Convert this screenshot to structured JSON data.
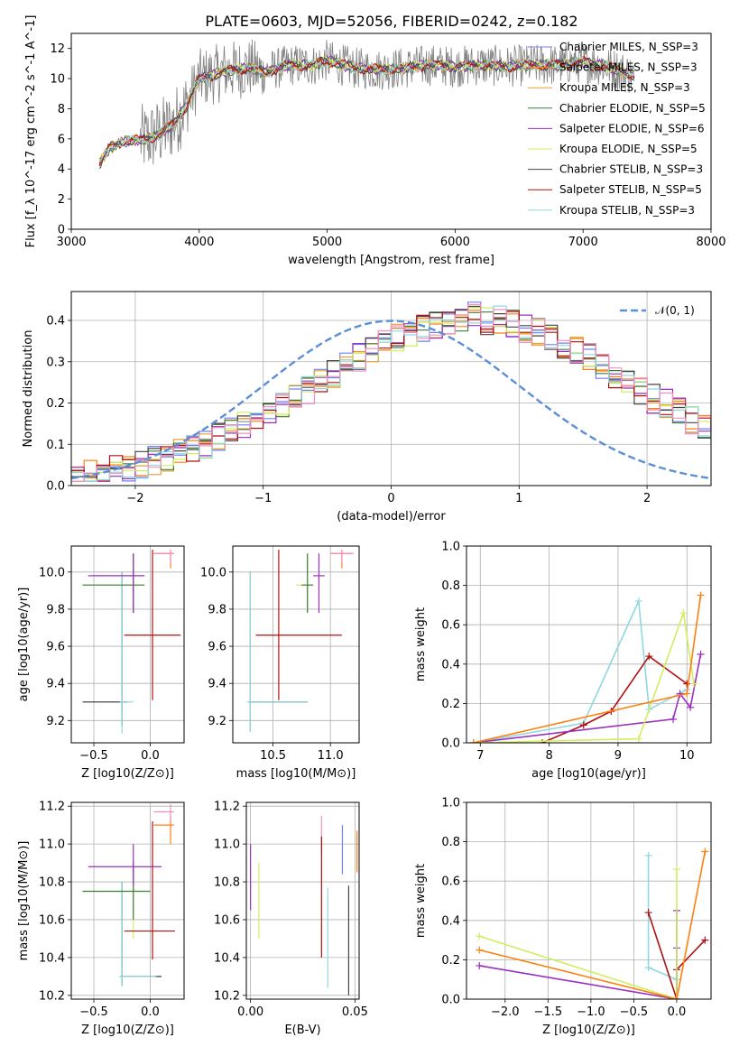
{
  "title": "PLATE=0603, MJD=52056, FIBERID=0242, z=0.182",
  "colors": {
    "cm": "#6f7fff",
    "sm": "#ff7f0e",
    "km": "#e6a035",
    "ce": "#3f7f3f",
    "se": "#9b2fbf",
    "ke": "#cfef5f",
    "cs": "#444444",
    "ss": "#b01010",
    "ks": "#8fd8e0",
    "data": "#808080",
    "gauss": "#5b8fd6",
    "pink": "#f090c0"
  },
  "chart_data": [
    {
      "type": "line",
      "title": "PLATE=0603, MJD=52056, FIBERID=0242, z=0.182",
      "xlabel": "wavelength [Angstrom, rest frame]",
      "ylabel": "Flux [f_λ 10^-17 erg cm^-2 s^-1 A^-1]",
      "xlim": [
        3000,
        8000
      ],
      "ylim": [
        0,
        13
      ],
      "xticks": [
        "3000",
        "4000",
        "5000",
        "6000",
        "7000",
        "8000"
      ],
      "yticks": [
        "0",
        "2",
        "4",
        "6",
        "8",
        "10",
        "12"
      ],
      "legend": [
        "Chabrier MILES, N_SSP=3",
        "Salpeter MILES, N_SSP=3",
        "Kroupa MILES, N_SSP=3",
        "Chabrier ELODIE, N_SSP=5",
        "Salpeter ELODIE, N_SSP=6",
        "Kroupa ELODIE, N_SSP=5",
        "Chabrier STELIB, N_SSP=3",
        "Salpeter STELIB, N_SSP=5",
        "Kroupa STELIB, N_SSP=3"
      ],
      "legend_loc": "right",
      "model_profile": [
        [
          3220,
          4.3
        ],
        [
          3300,
          5.4
        ],
        [
          3400,
          5.8
        ],
        [
          3500,
          5.9
        ],
        [
          3600,
          6.0
        ],
        [
          3700,
          6.4
        ],
        [
          3800,
          7.0
        ],
        [
          3900,
          8.2
        ],
        [
          4000,
          10.0
        ],
        [
          4100,
          10.2
        ],
        [
          4200,
          10.5
        ],
        [
          4300,
          10.6
        ],
        [
          4400,
          10.7
        ],
        [
          4500,
          10.4
        ],
        [
          4700,
          10.9
        ],
        [
          4900,
          10.9
        ],
        [
          5000,
          11.2
        ],
        [
          5200,
          10.7
        ],
        [
          5400,
          10.6
        ],
        [
          5600,
          10.7
        ],
        [
          5800,
          10.9
        ],
        [
          6000,
          10.8
        ],
        [
          6200,
          10.9
        ],
        [
          6400,
          10.8
        ],
        [
          6600,
          10.9
        ],
        [
          6800,
          10.9
        ],
        [
          7000,
          11.1
        ],
        [
          7200,
          10.8
        ],
        [
          7400,
          10.2
        ]
      ]
    },
    {
      "type": "bar",
      "xlabel": "(data-model)/error",
      "ylabel": "Normed distribution",
      "xlim": [
        -2.5,
        2.5
      ],
      "ylim": [
        0,
        0.47
      ],
      "xticks": [
        "−2",
        "−1",
        "0",
        "1",
        "2"
      ],
      "yticks": [
        "0.0",
        "0.1",
        "0.2",
        "0.3",
        "0.4"
      ],
      "bin_width": 0.1,
      "bins_start": -2.5,
      "histogram": [
        0.02,
        0.03,
        0.03,
        0.04,
        0.04,
        0.05,
        0.06,
        0.07,
        0.08,
        0.09,
        0.1,
        0.12,
        0.14,
        0.15,
        0.17,
        0.18,
        0.2,
        0.21,
        0.23,
        0.25,
        0.27,
        0.29,
        0.31,
        0.33,
        0.34,
        0.36,
        0.37,
        0.38,
        0.39,
        0.4,
        0.4,
        0.41,
        0.4,
        0.4,
        0.39,
        0.38,
        0.37,
        0.36,
        0.34,
        0.33,
        0.31,
        0.29,
        0.27,
        0.25,
        0.23,
        0.21,
        0.2,
        0.18,
        0.16,
        0.14,
        0.13
      ],
      "legend": [
        "𝒩(0, 1)"
      ],
      "legend_loc": "top-right",
      "grid": true
    },
    {
      "type": "scatter",
      "xlabel": "Z [log10(Z/Z⊙)]",
      "ylabel": "age  [log10(age/yr)]",
      "xlim": [
        -0.7,
        0.3
      ],
      "ylim": [
        9.08,
        10.14
      ],
      "xticks": [
        "−0.5",
        "0.0"
      ],
      "yticks": [
        "9.2",
        "9.4",
        "9.6",
        "9.8",
        "10.0"
      ],
      "grid": true,
      "points": [
        {
          "s": "cs",
          "x": -0.25,
          "y": 9.3,
          "xerr": [
            0.35,
            0.05
          ],
          "yerr": [
            0.13,
            0.7
          ]
        },
        {
          "s": "ks",
          "x": -0.25,
          "y": 9.3,
          "xerr": [
            0.02,
            0.1
          ],
          "yerr": [
            0.17,
            0.7
          ]
        },
        {
          "s": "ke",
          "x": -0.15,
          "y": 9.93,
          "xerr": [
            0.45,
            0.1
          ],
          "yerr": [
            0.15,
            0.17
          ]
        },
        {
          "s": "ce",
          "x": -0.15,
          "y": 9.93,
          "xerr": [
            0.45,
            0.1
          ],
          "yerr": [
            0.15,
            0.17
          ]
        },
        {
          "s": "se",
          "x": -0.15,
          "y": 9.98,
          "xerr": [
            0.4,
            0.1
          ],
          "yerr": [
            0.2,
            0.12
          ]
        },
        {
          "s": "ss",
          "x": 0.02,
          "y": 9.66,
          "xerr": [
            0.25,
            0.25
          ],
          "yerr": [
            0.35,
            0.46
          ]
        },
        {
          "s": "sm",
          "x": 0.18,
          "y": 10.1,
          "xerr": [
            0.15,
            0.03
          ],
          "yerr": [
            0.08,
            0.02
          ]
        },
        {
          "s": "pink",
          "x": 0.18,
          "y": 10.1,
          "xerr": [
            0.15,
            0.03
          ],
          "yerr": [
            0.05,
            0.02
          ]
        }
      ]
    },
    {
      "type": "scatter",
      "xlabel": "mass [log10(M/M⊙)]",
      "ylabel": "",
      "xlim": [
        10.15,
        11.25
      ],
      "ylim": [
        9.08,
        10.14
      ],
      "xticks": [
        "10.5",
        "11.0"
      ],
      "yticks": [
        "9.2",
        "9.4",
        "9.6",
        "9.8",
        "10.0"
      ],
      "grid": true,
      "points": [
        {
          "s": "cs",
          "x": 10.3,
          "y": 9.3,
          "xerr": [
            0.02,
            0.5
          ],
          "yerr": [
            0.16,
            0.7
          ]
        },
        {
          "s": "ks",
          "x": 10.3,
          "y": 9.3,
          "xerr": [
            0.02,
            0.5
          ],
          "yerr": [
            0.16,
            0.7
          ]
        },
        {
          "s": "ke",
          "x": 10.8,
          "y": 9.93,
          "xerr": [
            0.1,
            0.05
          ],
          "yerr": [
            0.15,
            0.17
          ]
        },
        {
          "s": "ce",
          "x": 10.8,
          "y": 9.93,
          "xerr": [
            0.05,
            0.05
          ],
          "yerr": [
            0.15,
            0.17
          ]
        },
        {
          "s": "se",
          "x": 10.9,
          "y": 9.98,
          "xerr": [
            0.05,
            0.05
          ],
          "yerr": [
            0.2,
            0.12
          ]
        },
        {
          "s": "ss",
          "x": 10.55,
          "y": 9.66,
          "xerr": [
            0.2,
            0.55
          ],
          "yerr": [
            0.35,
            0.46
          ]
        },
        {
          "s": "sm",
          "x": 11.1,
          "y": 10.1,
          "xerr": [
            0.1,
            0.1
          ],
          "yerr": [
            0.08,
            0.02
          ]
        },
        {
          "s": "pink",
          "x": 11.1,
          "y": 10.1,
          "xerr": [
            0.1,
            0.1
          ],
          "yerr": [
            0.05,
            0.02
          ]
        }
      ]
    },
    {
      "type": "line",
      "xlabel": "age  [log10(age/yr)]",
      "ylabel": "mass weight",
      "xlim": [
        6.8,
        10.35
      ],
      "ylim": [
        0,
        1.0
      ],
      "xticks": [
        "7",
        "8",
        "9",
        "10"
      ],
      "yticks": [
        "0.0",
        "0.2",
        "0.4",
        "0.6",
        "0.8",
        "1.0"
      ],
      "grid": true,
      "series": [
        {
          "s": "ks",
          "x": [
            6.9,
            8.5,
            9.3,
            9.45,
            10.0
          ],
          "y": [
            0.0,
            0.1,
            0.72,
            0.17,
            0.27
          ]
        },
        {
          "s": "ss",
          "x": [
            7.9,
            8.5,
            8.9,
            9.45,
            10.0
          ],
          "y": [
            0.0,
            0.09,
            0.16,
            0.44,
            0.3
          ]
        },
        {
          "s": "se",
          "x": [
            6.9,
            9.8,
            9.9,
            10.05,
            10.2
          ],
          "y": [
            0.0,
            0.12,
            0.25,
            0.18,
            0.45
          ]
        },
        {
          "s": "ke",
          "x": [
            6.9,
            9.3,
            9.95,
            10.1
          ],
          "y": [
            0.0,
            0.02,
            0.66,
            0.3
          ]
        },
        {
          "s": "sm",
          "x": [
            6.9,
            10.0,
            10.2
          ],
          "y": [
            0.0,
            0.25,
            0.75
          ]
        }
      ]
    },
    {
      "type": "scatter",
      "xlabel": "Z [log10(Z/Z⊙)]",
      "ylabel": "mass [log10(M/M⊙)]",
      "xlim": [
        -0.7,
        0.3
      ],
      "ylim": [
        10.18,
        11.22
      ],
      "xticks": [
        "−0.5",
        "0.0"
      ],
      "yticks": [
        "10.2",
        "10.4",
        "10.6",
        "10.8",
        "11.0",
        "11.2"
      ],
      "grid": true,
      "points": [
        {
          "s": "cs",
          "x": -0.25,
          "y": 10.3,
          "xerr": [
            0.02,
            0.35
          ],
          "yerr": [
            0.05,
            0.5
          ]
        },
        {
          "s": "ks",
          "x": -0.25,
          "y": 10.3,
          "xerr": [
            0.02,
            0.3
          ],
          "yerr": [
            0.05,
            0.5
          ]
        },
        {
          "s": "ke",
          "x": -0.15,
          "y": 10.75,
          "xerr": [
            0.45,
            0.15
          ],
          "yerr": [
            0.25,
            0.15
          ]
        },
        {
          "s": "ce",
          "x": -0.15,
          "y": 10.75,
          "xerr": [
            0.45,
            0.15
          ],
          "yerr": [
            0.15,
            0.15
          ]
        },
        {
          "s": "se",
          "x": -0.15,
          "y": 10.88,
          "xerr": [
            0.4,
            0.25
          ],
          "yerr": [
            0.1,
            0.12
          ]
        },
        {
          "s": "ss",
          "x": 0.02,
          "y": 10.54,
          "xerr": [
            0.25,
            0.2
          ],
          "yerr": [
            0.15,
            0.58
          ]
        },
        {
          "s": "sm",
          "x": 0.18,
          "y": 11.1,
          "xerr": [
            0.15,
            0.03
          ],
          "yerr": [
            0.1,
            0.05
          ]
        },
        {
          "s": "pink",
          "x": 0.18,
          "y": 11.17,
          "xerr": [
            0.15,
            0.03
          ],
          "yerr": [
            0.05,
            0.04
          ]
        }
      ]
    },
    {
      "type": "scatter",
      "xlabel": "E(B-V)",
      "ylabel": "",
      "xlim": [
        -0.002,
        0.052
      ],
      "ylim": [
        10.18,
        11.22
      ],
      "xticks": [
        "0.00",
        "0.05"
      ],
      "yticks": [
        "10.2",
        "10.4",
        "10.6",
        "10.8",
        "11.0",
        "11.2"
      ],
      "grid": true,
      "points": [
        {
          "s": "se",
          "x": 0.0,
          "y": 10.8,
          "yerr": [
            0.15,
            0.2
          ]
        },
        {
          "s": "ke",
          "x": 0.004,
          "y": 10.7,
          "yerr": [
            0.2,
            0.2
          ]
        },
        {
          "s": "pink",
          "x": 0.034,
          "y": 11.05,
          "yerr": [
            0.1,
            0.1
          ]
        },
        {
          "s": "ss",
          "x": 0.034,
          "y": 10.6,
          "yerr": [
            0.2,
            0.44
          ]
        },
        {
          "s": "ks",
          "x": 0.037,
          "y": 10.5,
          "yerr": [
            0.26,
            0.27
          ]
        },
        {
          "s": "cm",
          "x": 0.044,
          "y": 10.9,
          "yerr": [
            0.06,
            0.2
          ]
        },
        {
          "s": "cs",
          "x": 0.047,
          "y": 10.5,
          "yerr": [
            0.3,
            0.28
          ]
        },
        {
          "s": "sm",
          "x": 0.051,
          "y": 10.95,
          "yerr": [
            0.1,
            0.12
          ]
        }
      ]
    },
    {
      "type": "line",
      "xlabel": "Z [log10(Z/Z⊙)]",
      "ylabel": "mass weight",
      "xlim": [
        -2.45,
        0.4
      ],
      "ylim": [
        0,
        1.0
      ],
      "xticks": [
        "−2.0",
        "−1.5",
        "−1.0",
        "−0.5",
        "0.0"
      ],
      "yticks": [
        "0.0",
        "0.2",
        "0.4",
        "0.6",
        "0.8",
        "1.0"
      ],
      "grid": true,
      "series": [
        {
          "s": "ks",
          "x": [
            -0.33,
            -0.33,
            -0.33,
            0.0,
            0.0
          ],
          "y": [
            0.73,
            0.44,
            0.16,
            0.1,
            0.0
          ]
        },
        {
          "s": "ss",
          "x": [
            -0.33,
            0.0,
            0.0,
            0.33
          ],
          "y": [
            0.44,
            0.0,
            0.15,
            0.3
          ]
        },
        {
          "s": "se",
          "x": [
            -2.3,
            0.0,
            0.0,
            0.0
          ],
          "y": [
            0.17,
            0.0,
            0.26,
            0.45
          ]
        },
        {
          "s": "ke",
          "x": [
            -2.3,
            0.0,
            0.0
          ],
          "y": [
            0.32,
            0.0,
            0.66
          ]
        },
        {
          "s": "sm",
          "x": [
            -2.3,
            0.0,
            0.33
          ],
          "y": [
            0.25,
            0.0,
            0.75
          ]
        }
      ]
    }
  ]
}
